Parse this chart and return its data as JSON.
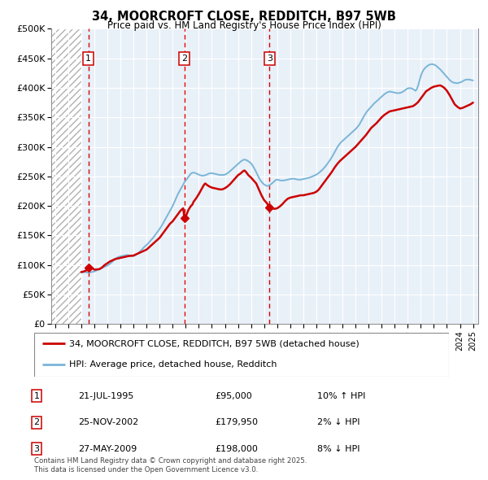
{
  "title": "34, MOORCROFT CLOSE, REDDITCH, B97 5WB",
  "subtitle": "Price paid vs. HM Land Registry's House Price Index (HPI)",
  "ylabel_ticks": [
    "£0",
    "£50K",
    "£100K",
    "£150K",
    "£200K",
    "£250K",
    "£300K",
    "£350K",
    "£400K",
    "£450K",
    "£500K"
  ],
  "ytick_values": [
    0,
    50000,
    100000,
    150000,
    200000,
    250000,
    300000,
    350000,
    400000,
    450000,
    500000
  ],
  "xlim_start": 1992.7,
  "xlim_end": 2025.4,
  "ylim_min": 0,
  "ylim_max": 500000,
  "hpi_color": "#7ab5d8",
  "price_color": "#cc0000",
  "marker_color": "#cc0000",
  "sales": [
    {
      "date": 1995.55,
      "price": 95000,
      "label": "1"
    },
    {
      "date": 2002.9,
      "price": 179950,
      "label": "2"
    },
    {
      "date": 2009.41,
      "price": 198000,
      "label": "3"
    }
  ],
  "sale_table": [
    {
      "num": "1",
      "date": "21-JUL-1995",
      "price": "£95,000",
      "rel": "10% ↑ HPI"
    },
    {
      "num": "2",
      "date": "25-NOV-2002",
      "price": "£179,950",
      "rel": "2% ↓ HPI"
    },
    {
      "num": "3",
      "date": "27-MAY-2009",
      "price": "£198,000",
      "rel": "8% ↓ HPI"
    }
  ],
  "legend_items": [
    {
      "label": "34, MOORCROFT CLOSE, REDDITCH, B97 5WB (detached house)",
      "color": "#cc0000",
      "lw": 2
    },
    {
      "label": "HPI: Average price, detached house, Redditch",
      "color": "#7ab5d8",
      "lw": 2
    }
  ],
  "footer": "Contains HM Land Registry data © Crown copyright and database right 2025.\nThis data is licensed under the Open Government Licence v3.0.",
  "hpi_data_x": [
    1995.0,
    1995.1,
    1995.2,
    1995.3,
    1995.4,
    1995.5,
    1995.6,
    1995.7,
    1995.8,
    1995.9,
    1996.0,
    1996.1,
    1996.2,
    1996.3,
    1996.4,
    1996.5,
    1996.6,
    1996.7,
    1996.8,
    1996.9,
    1997.0,
    1997.1,
    1997.2,
    1997.3,
    1997.4,
    1997.5,
    1997.6,
    1997.7,
    1997.8,
    1997.9,
    1998.0,
    1998.1,
    1998.2,
    1998.3,
    1998.4,
    1998.5,
    1998.6,
    1998.7,
    1998.8,
    1998.9,
    1999.0,
    1999.1,
    1999.2,
    1999.3,
    1999.4,
    1999.5,
    1999.6,
    1999.7,
    1999.8,
    1999.9,
    2000.0,
    2000.1,
    2000.2,
    2000.3,
    2000.4,
    2000.5,
    2000.6,
    2000.7,
    2000.8,
    2000.9,
    2001.0,
    2001.1,
    2001.2,
    2001.3,
    2001.4,
    2001.5,
    2001.6,
    2001.7,
    2001.8,
    2001.9,
    2002.0,
    2002.1,
    2002.2,
    2002.3,
    2002.4,
    2002.5,
    2002.6,
    2002.7,
    2002.8,
    2002.9,
    2003.0,
    2003.1,
    2003.2,
    2003.3,
    2003.4,
    2003.5,
    2003.6,
    2003.7,
    2003.8,
    2003.9,
    2004.0,
    2004.1,
    2004.2,
    2004.3,
    2004.4,
    2004.5,
    2004.6,
    2004.7,
    2004.8,
    2004.9,
    2005.0,
    2005.1,
    2005.2,
    2005.3,
    2005.4,
    2005.5,
    2005.6,
    2005.7,
    2005.8,
    2005.9,
    2006.0,
    2006.1,
    2006.2,
    2006.3,
    2006.4,
    2006.5,
    2006.6,
    2006.7,
    2006.8,
    2006.9,
    2007.0,
    2007.1,
    2007.2,
    2007.3,
    2007.4,
    2007.5,
    2007.6,
    2007.7,
    2007.8,
    2007.9,
    2008.0,
    2008.1,
    2008.2,
    2008.3,
    2008.4,
    2008.5,
    2008.6,
    2008.7,
    2008.8,
    2008.9,
    2009.0,
    2009.1,
    2009.2,
    2009.3,
    2009.4,
    2009.5,
    2009.6,
    2009.7,
    2009.8,
    2009.9,
    2010.0,
    2010.1,
    2010.2,
    2010.3,
    2010.4,
    2010.5,
    2010.6,
    2010.7,
    2010.8,
    2010.9,
    2011.0,
    2011.1,
    2011.2,
    2011.3,
    2011.4,
    2011.5,
    2011.6,
    2011.7,
    2011.8,
    2011.9,
    2012.0,
    2012.1,
    2012.2,
    2012.3,
    2012.4,
    2012.5,
    2012.6,
    2012.7,
    2012.8,
    2012.9,
    2013.0,
    2013.1,
    2013.2,
    2013.3,
    2013.4,
    2013.5,
    2013.6,
    2013.7,
    2013.8,
    2013.9,
    2014.0,
    2014.1,
    2014.2,
    2014.3,
    2014.4,
    2014.5,
    2014.6,
    2014.7,
    2014.8,
    2014.9,
    2015.0,
    2015.1,
    2015.2,
    2015.3,
    2015.4,
    2015.5,
    2015.6,
    2015.7,
    2015.8,
    2015.9,
    2016.0,
    2016.1,
    2016.2,
    2016.3,
    2016.4,
    2016.5,
    2016.6,
    2016.7,
    2016.8,
    2016.9,
    2017.0,
    2017.1,
    2017.2,
    2017.3,
    2017.4,
    2017.5,
    2017.6,
    2017.7,
    2017.8,
    2017.9,
    2018.0,
    2018.1,
    2018.2,
    2018.3,
    2018.4,
    2018.5,
    2018.6,
    2018.7,
    2018.8,
    2018.9,
    2019.0,
    2019.1,
    2019.2,
    2019.3,
    2019.4,
    2019.5,
    2019.6,
    2019.7,
    2019.8,
    2019.9,
    2020.0,
    2020.1,
    2020.2,
    2020.3,
    2020.4,
    2020.5,
    2020.6,
    2020.7,
    2020.8,
    2020.9,
    2021.0,
    2021.1,
    2021.2,
    2021.3,
    2021.4,
    2021.5,
    2021.6,
    2021.7,
    2021.8,
    2021.9,
    2022.0,
    2022.1,
    2022.2,
    2022.3,
    2022.4,
    2022.5,
    2022.6,
    2022.7,
    2022.8,
    2022.9,
    2023.0,
    2023.1,
    2023.2,
    2023.3,
    2023.4,
    2023.5,
    2023.6,
    2023.7,
    2023.8,
    2023.9,
    2024.0,
    2024.1,
    2024.2,
    2024.3,
    2024.4,
    2024.5,
    2024.6,
    2024.7,
    2024.8,
    2024.9,
    2025.0
  ],
  "hpi_data_y": [
    87000,
    87500,
    88000,
    88000,
    87500,
    87000,
    87000,
    87500,
    88000,
    88500,
    89000,
    90000,
    91000,
    92000,
    93000,
    94000,
    95000,
    96000,
    97000,
    98000,
    99000,
    100500,
    102000,
    104000,
    106000,
    108000,
    110000,
    112000,
    113000,
    114000,
    114500,
    115000,
    115500,
    116000,
    116500,
    117000,
    116500,
    116000,
    115500,
    115000,
    115000,
    116000,
    117500,
    119000,
    121000,
    123000,
    125000,
    127500,
    130000,
    132000,
    134000,
    136000,
    138500,
    141000,
    143500,
    146000,
    149000,
    152000,
    155000,
    158000,
    161000,
    164500,
    168000,
    172000,
    176000,
    180000,
    184000,
    188000,
    192000,
    196000,
    200000,
    205000,
    210000,
    215000,
    220000,
    224000,
    228000,
    232000,
    236000,
    240000,
    243000,
    246000,
    249000,
    252000,
    255000,
    256000,
    256500,
    256000,
    255000,
    254000,
    253000,
    252000,
    251500,
    251000,
    251500,
    252000,
    253000,
    254000,
    255000,
    255500,
    255500,
    255000,
    254500,
    254000,
    253500,
    253000,
    252500,
    252500,
    252500,
    252500,
    253000,
    254000,
    255500,
    257000,
    259000,
    261000,
    263000,
    265000,
    267000,
    269000,
    271000,
    273000,
    275000,
    276500,
    278000,
    278500,
    278000,
    277000,
    275500,
    274000,
    272000,
    269000,
    265500,
    261500,
    257000,
    252500,
    248000,
    244000,
    241000,
    238500,
    236500,
    235000,
    234000,
    234000,
    235000,
    236500,
    238000,
    240000,
    242000,
    244000,
    244500,
    244000,
    243500,
    243000,
    243000,
    243000,
    243500,
    244000,
    244500,
    245000,
    245500,
    246000,
    246000,
    246000,
    245500,
    245000,
    244500,
    244500,
    244500,
    245000,
    245500,
    246000,
    246500,
    247000,
    247500,
    248000,
    249000,
    250000,
    251000,
    252000,
    253000,
    254500,
    256000,
    258000,
    260000,
    262000,
    264500,
    267000,
    270000,
    273000,
    276000,
    279500,
    283000,
    287000,
    291000,
    295000,
    299000,
    302500,
    305500,
    308000,
    310000,
    312000,
    314000,
    316000,
    318000,
    320000,
    322000,
    324000,
    326000,
    328000,
    330000,
    332500,
    335000,
    338000,
    342000,
    346000,
    350000,
    354000,
    357500,
    360500,
    363000,
    365500,
    368000,
    370500,
    373000,
    375000,
    377000,
    379000,
    381000,
    383000,
    385000,
    387000,
    389000,
    390500,
    392000,
    393000,
    393500,
    393500,
    393000,
    392500,
    392000,
    391500,
    391000,
    391000,
    391500,
    392000,
    393000,
    394500,
    396000,
    398000,
    399000,
    399500,
    399500,
    399000,
    398000,
    396500,
    395000,
    398000,
    404000,
    412000,
    420000,
    426000,
    430000,
    433000,
    435000,
    437000,
    438500,
    439500,
    440000,
    440000,
    439500,
    438500,
    437000,
    435000,
    433000,
    431000,
    428500,
    426000,
    423500,
    421000,
    418500,
    416000,
    413500,
    411500,
    410000,
    409000,
    408500,
    408000,
    408000,
    408500,
    409000,
    410000,
    411000,
    412500,
    413500,
    414000,
    414000,
    414000,
    413500,
    413000,
    412500
  ],
  "price_data_x": [
    1995.0,
    1995.1,
    1995.2,
    1995.3,
    1995.4,
    1995.55,
    1995.7,
    1995.8,
    1995.9,
    1996.0,
    1996.2,
    1996.4,
    1996.6,
    1996.8,
    1997.0,
    1997.2,
    1997.4,
    1997.6,
    1997.8,
    1998.0,
    1998.2,
    1998.4,
    1998.6,
    1998.8,
    1999.0,
    1999.2,
    1999.4,
    1999.6,
    1999.8,
    2000.0,
    2000.2,
    2000.4,
    2000.6,
    2000.8,
    2001.0,
    2001.2,
    2001.4,
    2001.6,
    2001.8,
    2002.0,
    2002.2,
    2002.4,
    2002.6,
    2002.8,
    2002.9,
    2003.0,
    2003.2,
    2003.4,
    2003.5,
    2003.6,
    2003.8,
    2004.0,
    2004.2,
    2004.3,
    2004.4,
    2004.5,
    2004.6,
    2004.8,
    2005.0,
    2005.2,
    2005.4,
    2005.6,
    2005.8,
    2006.0,
    2006.2,
    2006.4,
    2006.6,
    2006.8,
    2007.0,
    2007.2,
    2007.3,
    2007.4,
    2007.5,
    2007.6,
    2007.8,
    2008.0,
    2008.2,
    2008.4,
    2008.6,
    2008.8,
    2009.0,
    2009.2,
    2009.41,
    2009.6,
    2009.8,
    2010.0,
    2010.2,
    2010.4,
    2010.6,
    2010.8,
    2011.0,
    2011.2,
    2011.4,
    2011.6,
    2011.8,
    2012.0,
    2012.2,
    2012.4,
    2012.6,
    2012.8,
    2013.0,
    2013.2,
    2013.4,
    2013.6,
    2013.8,
    2014.0,
    2014.2,
    2014.4,
    2014.6,
    2014.8,
    2015.0,
    2015.2,
    2015.4,
    2015.6,
    2015.8,
    2016.0,
    2016.2,
    2016.4,
    2016.6,
    2016.8,
    2017.0,
    2017.2,
    2017.4,
    2017.6,
    2017.8,
    2018.0,
    2018.2,
    2018.4,
    2018.6,
    2018.8,
    2019.0,
    2019.2,
    2019.4,
    2019.6,
    2019.8,
    2020.0,
    2020.2,
    2020.4,
    2020.6,
    2020.8,
    2021.0,
    2021.2,
    2021.4,
    2021.6,
    2021.8,
    2022.0,
    2022.2,
    2022.4,
    2022.5,
    2022.6,
    2022.8,
    2023.0,
    2023.2,
    2023.4,
    2023.5,
    2023.6,
    2023.8,
    2024.0,
    2024.2,
    2024.4,
    2024.6,
    2024.8,
    2025.0
  ],
  "price_data_y": [
    88000,
    88500,
    89000,
    90000,
    91000,
    95000,
    95500,
    95000,
    94000,
    92000,
    92500,
    93000,
    96000,
    100000,
    103000,
    106000,
    108000,
    110000,
    111000,
    112000,
    113000,
    114000,
    115000,
    115500,
    116000,
    118000,
    120000,
    122000,
    124000,
    126000,
    130000,
    134000,
    138000,
    142000,
    146000,
    152000,
    158000,
    164000,
    170000,
    174000,
    180000,
    186000,
    192000,
    196000,
    179950,
    182000,
    193000,
    200000,
    202000,
    207000,
    213000,
    220000,
    228000,
    232000,
    236000,
    238000,
    236000,
    233000,
    231000,
    230000,
    229000,
    228000,
    228000,
    230000,
    233000,
    237000,
    242000,
    247000,
    252000,
    255000,
    257000,
    259000,
    260000,
    258000,
    252000,
    248000,
    243000,
    238000,
    228000,
    218000,
    210000,
    205000,
    198000,
    196000,
    195000,
    196000,
    199000,
    203000,
    208000,
    212000,
    214000,
    215000,
    216000,
    217000,
    218000,
    218000,
    219000,
    220000,
    221000,
    222000,
    224000,
    228000,
    234000,
    240000,
    246000,
    252000,
    258000,
    265000,
    271000,
    276000,
    280000,
    284000,
    288000,
    292000,
    296000,
    300000,
    305000,
    310000,
    315000,
    320000,
    326000,
    332000,
    336000,
    340000,
    345000,
    350000,
    354000,
    357000,
    360000,
    361000,
    362000,
    363000,
    364000,
    365000,
    366000,
    367000,
    368000,
    369000,
    372000,
    376000,
    382000,
    388000,
    394000,
    397000,
    400000,
    402000,
    403000,
    404000,
    404000,
    403000,
    400000,
    395000,
    388000,
    380000,
    376000,
    372000,
    368000,
    365000,
    366000,
    368000,
    370000,
    372000,
    375000
  ]
}
